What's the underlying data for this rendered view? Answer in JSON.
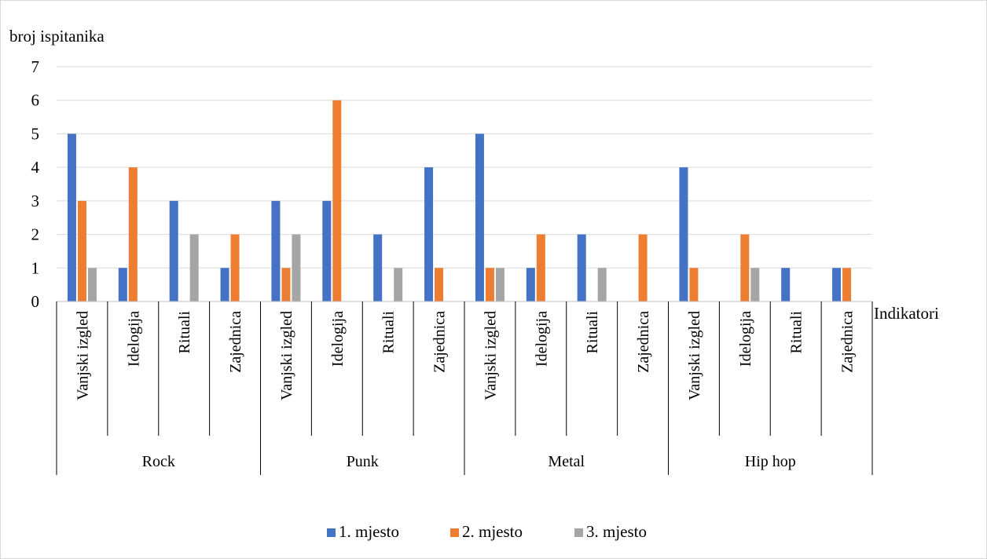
{
  "chart_data": {
    "type": "bar",
    "ylabel": "broj ispitanika",
    "xlabel": "Indikatori",
    "ylim": [
      0,
      7
    ],
    "yticks": [
      0,
      1,
      2,
      3,
      4,
      5,
      6,
      7
    ],
    "grid": true,
    "legend_position": "bottom",
    "groups": [
      {
        "label": "Rock",
        "categories": [
          "Vanjski izgled",
          "Idelogija",
          "Rituali",
          "Zajednica"
        ]
      },
      {
        "label": "Punk",
        "categories": [
          "Vanjski izgled",
          "Idelogija",
          "Rituali",
          "Zajednica"
        ]
      },
      {
        "label": "Metal",
        "categories": [
          "Vanjski izgled",
          "Idelogija",
          "Rituali",
          "Zajednica"
        ]
      },
      {
        "label": "Hip hop",
        "categories": [
          "Vanjski izgled",
          "Idelogija",
          "Rituali",
          "Zajednica"
        ]
      }
    ],
    "series": [
      {
        "name": "1. mjesto",
        "color": "#4472C4",
        "values": [
          5,
          1,
          3,
          1,
          3,
          3,
          2,
          4,
          5,
          1,
          2,
          0,
          4,
          0,
          1,
          1
        ]
      },
      {
        "name": "2. mjesto",
        "color": "#ED7D31",
        "values": [
          3,
          4,
          0,
          2,
          1,
          6,
          0,
          1,
          1,
          2,
          0,
          2,
          1,
          2,
          0,
          1
        ]
      },
      {
        "name": "3. mjesto",
        "color": "#A5A5A5",
        "values": [
          1,
          0,
          2,
          0,
          2,
          0,
          1,
          0,
          1,
          0,
          1,
          0,
          0,
          1,
          0,
          0
        ]
      }
    ]
  }
}
